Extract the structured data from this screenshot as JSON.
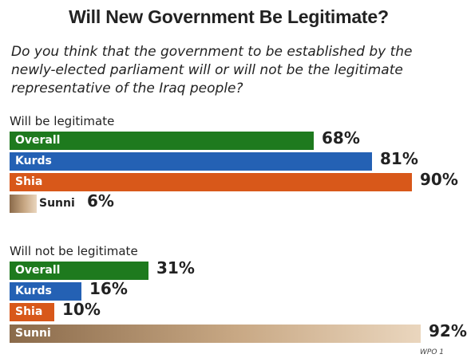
{
  "title": "Will New Government Be Legitimate?",
  "question": "Do you think that the government to be established by the\nnewly-elected parliament will or will not be the legitimate\nrepresentative of the Iraq people?",
  "source": "WPO 1",
  "colors": {
    "Overall": "#1e7a1e",
    "Kurds": "#2461b4",
    "Shia": "#d8581a",
    "Sunni": "#c8a884"
  },
  "chart_data": [
    {
      "type": "bar",
      "orientation": "horizontal",
      "title": "Will be legitimate",
      "categories": [
        "Overall",
        "Kurds",
        "Shia",
        "Sunni"
      ],
      "values": [
        68,
        81,
        90,
        6
      ],
      "value_labels": [
        "68%",
        "81%",
        "90%",
        "6%"
      ],
      "unit": "%",
      "xlim": [
        0,
        100
      ]
    },
    {
      "type": "bar",
      "orientation": "horizontal",
      "title": "Will not be legitimate",
      "categories": [
        "Overall",
        "Kurds",
        "Shia",
        "Sunni"
      ],
      "values": [
        31,
        16,
        10,
        92
      ],
      "value_labels": [
        "31%",
        "16%",
        "10%",
        "92%"
      ],
      "unit": "%",
      "xlim": [
        0,
        100
      ]
    }
  ]
}
